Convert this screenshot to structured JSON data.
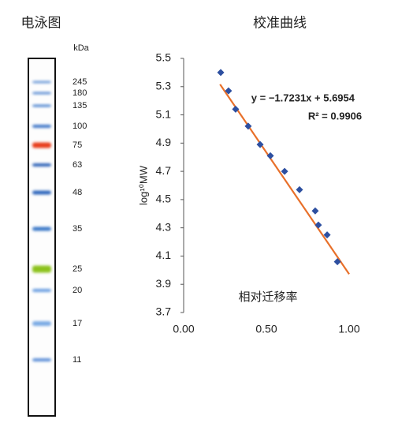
{
  "gel": {
    "title": "电泳图",
    "unit": "kDa",
    "bands": [
      {
        "label": "245",
        "color": "#6f9bd8"
      },
      {
        "label": "180",
        "color": "#5f8fd4"
      },
      {
        "label": "135",
        "color": "#4f85d0"
      },
      {
        "label": "100",
        "color": "#3f77c8"
      },
      {
        "label": "75",
        "color": "#e8401c"
      },
      {
        "label": "63",
        "color": "#2f63b8"
      },
      {
        "label": "48",
        "color": "#2f66bc"
      },
      {
        "label": "35",
        "color": "#3a78c8"
      },
      {
        "label": "25",
        "color": "#8cc21e"
      },
      {
        "label": "20",
        "color": "#6a9ee0"
      },
      {
        "label": "17",
        "color": "#7aaae4"
      },
      {
        "label": "11",
        "color": "#5d90d8"
      }
    ]
  },
  "chart_data": {
    "type": "scatter",
    "title": "校准曲线",
    "x_label": "相对迁移率",
    "y_label": "log¹⁰MW",
    "equation": "y = −1.7231x + 5.6954",
    "r_squared": "R² = 0.9906",
    "series": [
      {
        "color": "#2d4fa0",
        "x": [
          0.224,
          0.271,
          0.314,
          0.39,
          0.462,
          0.524,
          0.61,
          0.7,
          0.795,
          0.814,
          0.867,
          0.929
        ],
        "values": [
          5.4,
          5.27,
          5.14,
          5.02,
          4.89,
          4.81,
          4.7,
          4.57,
          4.42,
          4.32,
          4.25,
          4.06
        ]
      }
    ],
    "trendline": {
      "color": "#e8702a",
      "x": [
        0.22,
        1.0
      ],
      "values": [
        5.316,
        3.972
      ]
    },
    "xlim": [
      0,
      1
    ],
    "xticks": [
      {
        "value": 0,
        "label": "0.00"
      },
      {
        "value": 0.5,
        "label": "0.50"
      },
      {
        "value": 1,
        "label": "1.00"
      }
    ],
    "ylim": [
      3.7,
      5.5
    ],
    "yticks": [
      3.7,
      3.9,
      4.1,
      4.3,
      4.5,
      4.7,
      4.9,
      5.1,
      5.3,
      5.5
    ]
  }
}
